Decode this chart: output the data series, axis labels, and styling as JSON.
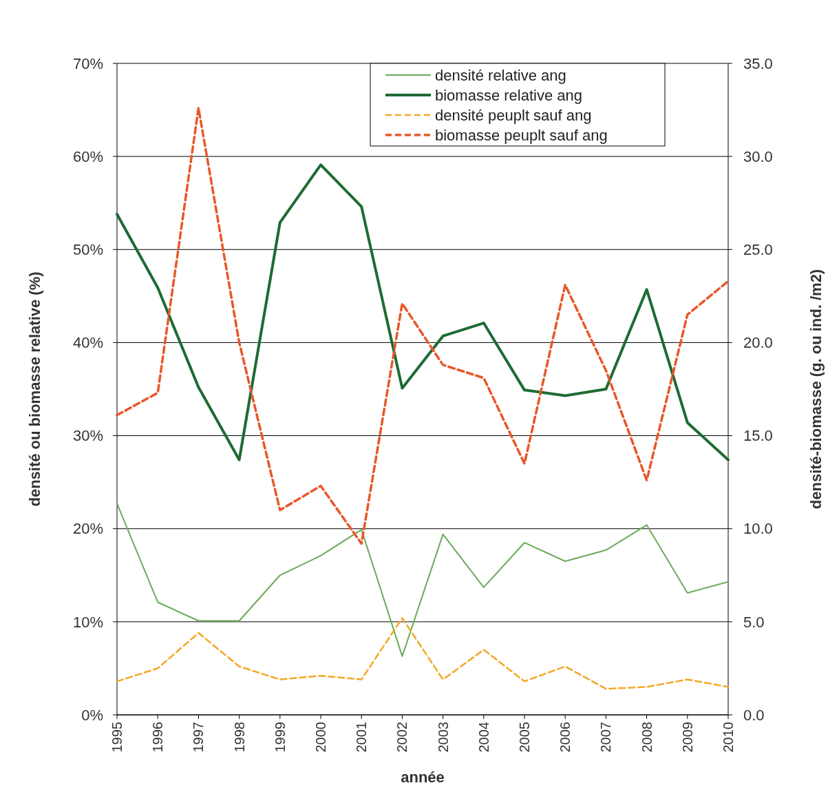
{
  "chart_data": {
    "type": "line",
    "xlabel": "année",
    "ylabel": "densité ou biomasse relative (%)",
    "y2label": "densité-biomasse (g. ou ind. /m2)",
    "categories": [
      "1995",
      "1996",
      "1997",
      "1998",
      "1999",
      "2000",
      "2001",
      "2002",
      "2003",
      "2004",
      "2005",
      "2006",
      "2007",
      "2008",
      "2009",
      "2010"
    ],
    "series": [
      {
        "name": "densité relative ang",
        "color": "#6aaa5a",
        "line_style": "solid",
        "values": [
          22.7,
          12.1,
          10.1,
          10.1,
          15.0,
          17.1,
          19.9,
          6.3,
          19.4,
          13.7,
          18.5,
          16.5,
          17.7,
          20.4,
          13.1,
          14.3
        ]
      },
      {
        "name": "biomasse relative ang",
        "color": "#1e6b34",
        "line_style": "solid",
        "values": [
          53.8,
          45.9,
          35.2,
          27.4,
          52.9,
          59.1,
          54.6,
          35.1,
          40.7,
          42.1,
          34.9,
          34.3,
          35.0,
          45.7,
          31.4,
          27.4
        ]
      },
      {
        "name": "densité peuplt sauf ang",
        "color": "#f5a623",
        "line_style": "dashed",
        "axis": "y2",
        "values": [
          1.8,
          2.5,
          4.4,
          2.6,
          1.9,
          2.1,
          1.9,
          5.2,
          1.9,
          3.5,
          1.8,
          2.6,
          1.4,
          1.5,
          1.9,
          1.5
        ]
      },
      {
        "name": "biomasse peuplt sauf ang",
        "color": "#e8572a",
        "line_style": "dashed",
        "axis": "y2",
        "values": [
          16.1,
          17.3,
          32.6,
          20.0,
          11.0,
          12.3,
          9.2,
          22.1,
          18.8,
          18.1,
          13.5,
          23.1,
          18.5,
          12.6,
          21.5,
          23.3
        ]
      }
    ],
    "ylim": [
      0,
      70
    ],
    "yticks": [
      {
        "value": 0,
        "label": "0%"
      },
      {
        "value": 10,
        "label": "10%"
      },
      {
        "value": 20,
        "label": "20%"
      },
      {
        "value": 30,
        "label": "30%"
      },
      {
        "value": 40,
        "label": "40%"
      },
      {
        "value": 50,
        "label": "50%"
      },
      {
        "value": 60,
        "label": "60%"
      },
      {
        "value": 70,
        "label": "70%"
      }
    ],
    "y2lim": [
      0,
      35
    ],
    "y2ticks": [
      {
        "value": 0,
        "label": "0.0"
      },
      {
        "value": 5,
        "label": "5.0"
      },
      {
        "value": 10,
        "label": "10.0"
      },
      {
        "value": 15,
        "label": "15.0"
      },
      {
        "value": 20,
        "label": "20.0"
      },
      {
        "value": 25,
        "label": "25.0"
      },
      {
        "value": 30,
        "label": "30.0"
      },
      {
        "value": 35,
        "label": "35.0"
      }
    ],
    "grid": "y",
    "legend": "top",
    "marker": "none"
  }
}
